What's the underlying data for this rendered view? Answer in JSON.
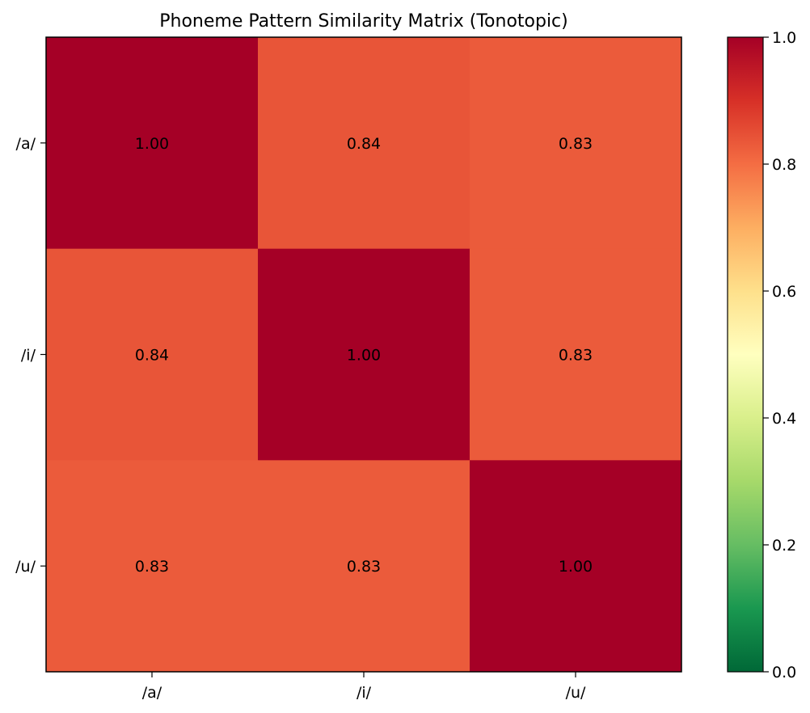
{
  "chart_data": {
    "type": "heatmap",
    "title": "Phoneme Pattern Similarity Matrix (Tonotopic)",
    "xlabel": "",
    "ylabel": "",
    "x_categories": [
      "/a/",
      "/i/",
      "/u/"
    ],
    "y_categories": [
      "/a/",
      "/i/",
      "/u/"
    ],
    "values": [
      [
        1.0,
        0.84,
        0.83
      ],
      [
        0.84,
        1.0,
        0.83
      ],
      [
        0.83,
        0.83,
        1.0
      ]
    ],
    "value_labels": [
      [
        "1.00",
        "0.84",
        "0.83"
      ],
      [
        "0.84",
        "1.00",
        "0.83"
      ],
      [
        "0.83",
        "0.83",
        "1.00"
      ]
    ],
    "colormap": "RdYlGn_r",
    "colorbar": {
      "range": [
        0.0,
        1.0
      ],
      "ticks": [
        "0.0",
        "0.2",
        "0.4",
        "0.6",
        "0.8",
        "1.0"
      ],
      "tick_values": [
        0.0,
        0.2,
        0.4,
        0.6,
        0.8,
        1.0
      ],
      "stops": [
        "#006837",
        "#1a9850",
        "#66bd63",
        "#a6d96a",
        "#d9ef8b",
        "#ffffbf",
        "#fee08b",
        "#fdae61",
        "#f46d43",
        "#d73027",
        "#a50026"
      ]
    },
    "grid": false,
    "legend": "colorbar-right"
  }
}
